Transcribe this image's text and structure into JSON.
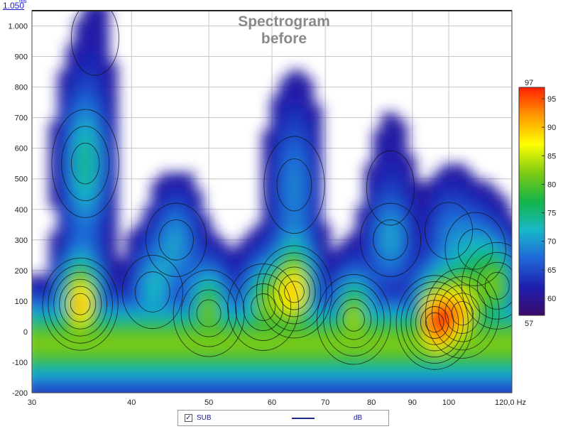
{
  "chart_data": {
    "type": "heatmap",
    "title": [
      "Spectrogram",
      "before"
    ],
    "x_axis": {
      "scale": "log",
      "range": [
        30,
        120
      ],
      "tick_values": [
        30,
        40,
        50,
        60,
        70,
        80,
        90,
        100,
        120
      ],
      "tick_labels": [
        "30",
        "40",
        "50",
        "60",
        "70",
        "80",
        "90",
        "100",
        "120,0 Hz"
      ]
    },
    "y_axis": {
      "unit": "ms",
      "range": [
        -200,
        1050
      ],
      "tick_values": [
        -200,
        -100,
        0,
        100,
        200,
        300,
        400,
        500,
        600,
        700,
        800,
        900,
        1000
      ],
      "tick_labels": [
        "-200",
        "-100",
        "0",
        "100",
        "200",
        "300",
        "400",
        "500",
        "600",
        "700",
        "800",
        "900",
        "1.000"
      ],
      "top_label": "1.050",
      "top_unit": "ms"
    },
    "colorbar": {
      "min": 57,
      "max": 97,
      "min_label": "57",
      "max_label": "97",
      "ticks": [
        60,
        65,
        70,
        75,
        80,
        85,
        90,
        95
      ],
      "tick_labels": [
        "60",
        "65",
        "70",
        "75",
        "80",
        "85",
        "90",
        "95"
      ],
      "colors": [
        "#3a0a6a",
        "#1f1fb0",
        "#1f68d8",
        "#18b8c8",
        "#14b448",
        "#7ecb14",
        "#ffff00",
        "#ff9a00",
        "#ff2000"
      ]
    },
    "background_floor_db": 60,
    "peaks": [
      {
        "x": 34.5,
        "y": 90,
        "db": 91.5
      },
      {
        "x": 35.0,
        "y": 550,
        "db": 75
      },
      {
        "x": 36.0,
        "y": 960,
        "db": 61
      },
      {
        "x": 45.5,
        "y": 300,
        "db": 70
      },
      {
        "x": 42.5,
        "y": 130,
        "db": 72
      },
      {
        "x": 64.0,
        "y": 130,
        "db": 89
      },
      {
        "x": 64.0,
        "y": 480,
        "db": 69
      },
      {
        "x": 58.5,
        "y": 80,
        "db": 80
      },
      {
        "x": 84.5,
        "y": 300,
        "db": 70
      },
      {
        "x": 84.5,
        "y": 470,
        "db": 62
      },
      {
        "x": 96.0,
        "y": 30,
        "db": 95
      },
      {
        "x": 104.0,
        "y": 60,
        "db": 86
      },
      {
        "x": 100.0,
        "y": 330,
        "db": 67
      },
      {
        "x": 108.0,
        "y": 270,
        "db": 68
      },
      {
        "x": 115.0,
        "y": 150,
        "db": 80
      },
      {
        "x": 50.0,
        "y": 60,
        "db": 82
      },
      {
        "x": 76.0,
        "y": 40,
        "db": 84
      }
    ],
    "grid": true,
    "legend": {
      "position": "bottom-center",
      "entries": [
        {
          "checked": true,
          "name": "SUB",
          "units": "dB",
          "color": "#1e2a8a"
        }
      ]
    }
  }
}
